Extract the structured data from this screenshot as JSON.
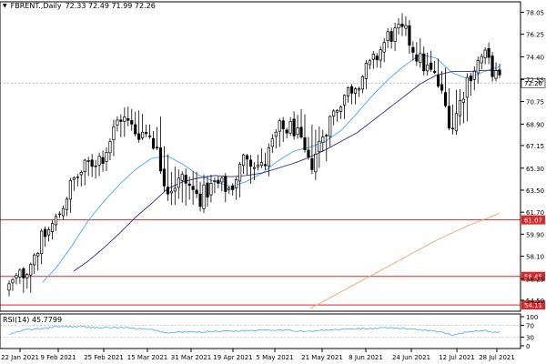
{
  "header": {
    "symbol": "FBRENT.,Daily",
    "ohlc": "72.33 72.49 71.99 72.26"
  },
  "rsi_label": "RSI(14) 45.7799",
  "chart_data": {
    "type": "candlestick",
    "x_tick_labels": [
      "22 Jan 2021",
      "9 Feb 2021",
      "25 Feb 2021",
      "15 Mar 2021",
      "31 Mar 2021",
      "19 Apr 2021",
      "5 May 2021",
      "21 May 2021",
      "8 Jun 2021",
      "24 Jun 2021",
      "12 Jul 2021",
      "28 Jul 2021"
    ],
    "y_tick_labels": [
      "78.05",
      "76.25",
      "74.40",
      "72.55",
      "70.75",
      "68.90",
      "67.15",
      "65.30",
      "63.50",
      "61.70",
      "59.90",
      "58.10",
      "56.25",
      "54.50"
    ],
    "ylim": [
      53.6,
      78.9
    ],
    "current_price": "72.26",
    "horizontal_levels": [
      {
        "label": "61.07",
        "value": 61.07,
        "color": "#d9292c"
      },
      {
        "label": "56.45",
        "value": 56.45,
        "color": "#d9292c"
      },
      {
        "label": "54.11",
        "value": 54.11,
        "color": "#d9292c"
      }
    ],
    "candles_sampled": [
      {
        "date": "22 Jan 2021",
        "o": 55.4,
        "h": 56.1,
        "l": 54.9,
        "c": 55.6
      },
      {
        "date": "27 Jan 2021",
        "o": 55.4,
        "h": 57.1,
        "l": 54.9,
        "c": 56.9
      },
      {
        "date": "2 Feb 2021",
        "o": 57.0,
        "h": 59.6,
        "l": 56.7,
        "c": 59.3
      },
      {
        "date": "9 Feb 2021",
        "o": 60.3,
        "h": 61.6,
        "l": 60.0,
        "c": 61.1
      },
      {
        "date": "16 Feb 2021",
        "o": 62.8,
        "h": 64.6,
        "l": 62.4,
        "c": 64.2
      },
      {
        "date": "22 Feb 2021",
        "o": 64.4,
        "h": 66.1,
        "l": 63.5,
        "c": 65.6
      },
      {
        "date": "25 Feb 2021",
        "o": 66.0,
        "h": 67.7,
        "l": 65.4,
        "c": 66.4
      },
      {
        "date": "4 Mar 2021",
        "o": 67.7,
        "h": 70.3,
        "l": 67.2,
        "c": 69.6
      },
      {
        "date": "8 Mar 2021",
        "o": 69.9,
        "h": 71.3,
        "l": 67.8,
        "c": 68.3
      },
      {
        "date": "12 Mar 2021",
        "o": 68.9,
        "h": 69.7,
        "l": 67.7,
        "c": 68.1
      },
      {
        "date": "15 Mar 2021",
        "o": 68.3,
        "h": 68.9,
        "l": 62.9,
        "c": 63.6
      },
      {
        "date": "22 Mar 2021",
        "o": 63.2,
        "h": 65.0,
        "l": 60.4,
        "c": 64.4
      },
      {
        "date": "29 Mar 2021",
        "o": 64.6,
        "h": 65.3,
        "l": 62.3,
        "c": 62.8
      },
      {
        "date": "31 Mar 2021",
        "o": 62.9,
        "h": 64.7,
        "l": 62.4,
        "c": 64.0
      },
      {
        "date": "7 Apr 2021",
        "o": 63.0,
        "h": 64.0,
        "l": 62.5,
        "c": 63.6
      },
      {
        "date": "12 Apr 2021",
        "o": 64.1,
        "h": 66.7,
        "l": 63.7,
        "c": 66.5
      },
      {
        "date": "19 Apr 2021",
        "o": 66.8,
        "h": 67.4,
        "l": 64.9,
        "c": 65.2
      },
      {
        "date": "26 Apr 2021",
        "o": 66.4,
        "h": 68.7,
        "l": 66.0,
        "c": 68.4
      },
      {
        "date": "5 May 2021",
        "o": 68.8,
        "h": 69.6,
        "l": 68.0,
        "c": 68.6
      },
      {
        "date": "12 May 2021",
        "o": 68.1,
        "h": 69.8,
        "l": 64.9,
        "c": 65.3
      },
      {
        "date": "21 May 2021",
        "o": 66.4,
        "h": 68.9,
        "l": 65.3,
        "c": 68.6
      },
      {
        "date": "28 May 2021",
        "o": 69.3,
        "h": 71.2,
        "l": 68.9,
        "c": 71.0
      },
      {
        "date": "8 Jun 2021",
        "o": 71.6,
        "h": 72.8,
        "l": 71.0,
        "c": 72.4
      },
      {
        "date": "15 Jun 2021",
        "o": 73.6,
        "h": 74.5,
        "l": 72.8,
        "c": 73.9
      },
      {
        "date": "24 Jun 2021",
        "o": 75.2,
        "h": 76.9,
        "l": 74.9,
        "c": 76.2
      },
      {
        "date": "1 Jul 2021",
        "o": 76.1,
        "h": 77.8,
        "l": 75.3,
        "c": 76.4
      },
      {
        "date": "8 Jul 2021",
        "o": 74.9,
        "h": 75.8,
        "l": 73.0,
        "c": 74.0
      },
      {
        "date": "12 Jul 2021",
        "o": 73.5,
        "h": 74.2,
        "l": 72.3,
        "c": 72.6
      },
      {
        "date": "19 Jul 2021",
        "o": 72.0,
        "h": 72.5,
        "l": 67.9,
        "c": 68.6
      },
      {
        "date": "22 Jul 2021",
        "o": 70.0,
        "h": 73.4,
        "l": 69.7,
        "c": 72.8
      },
      {
        "date": "28 Jul 2021",
        "o": 74.1,
        "h": 75.2,
        "l": 73.5,
        "c": 74.6
      },
      {
        "date": "2 Aug 2021",
        "o": 73.4,
        "h": 73.8,
        "l": 71.9,
        "c": 72.3
      }
    ],
    "moving_averages": [
      {
        "color": "#4aa5ff",
        "values_sampled": [
          null,
          null,
          55.8,
          57.2,
          59.0,
          61.0,
          62.6,
          64.0,
          65.2,
          66.1,
          66.3,
          65.6,
          64.7,
          64.2,
          63.8,
          64.2,
          64.9,
          65.9,
          66.7,
          67.0,
          67.5,
          68.4,
          69.8,
          71.3,
          72.6,
          73.7,
          74.6,
          74.3,
          73.1,
          72.6,
          73.2,
          73.6
        ]
      },
      {
        "color": "#2f2f87",
        "values_sampled": [
          null,
          null,
          null,
          null,
          56.8,
          57.7,
          58.8,
          60.0,
          61.3,
          62.4,
          63.6,
          64.2,
          64.5,
          64.7,
          64.6,
          64.7,
          64.9,
          65.3,
          65.7,
          66.2,
          66.8,
          67.5,
          68.2,
          69.2,
          70.2,
          71.2,
          72.2,
          72.9,
          73.2,
          73.2,
          73.3,
          73.3
        ]
      },
      {
        "color": "#e8a96b",
        "values_sampled": [
          null,
          null,
          null,
          null,
          null,
          null,
          null,
          null,
          null,
          null,
          null,
          null,
          null,
          null,
          null,
          null,
          null,
          null,
          null,
          53.8,
          54.5,
          55.2,
          55.9,
          56.6,
          57.3,
          58.0,
          58.7,
          59.4,
          60.0,
          60.6,
          61.1,
          61.6
        ]
      }
    ],
    "rsi": {
      "label": "RSI(14) 45.7799",
      "period": 14,
      "current": 45.7799,
      "y_tick_labels": [
        "100",
        "70",
        "30",
        "0"
      ],
      "ylim": [
        0,
        100
      ],
      "values_sampled": [
        38,
        55,
        58,
        66,
        66,
        64,
        62,
        63,
        59,
        55,
        44,
        48,
        47,
        50,
        51,
        52,
        55,
        55,
        52,
        49,
        54,
        56,
        59,
        59,
        61,
        60,
        56,
        50,
        38,
        48,
        53,
        46
      ]
    }
  }
}
